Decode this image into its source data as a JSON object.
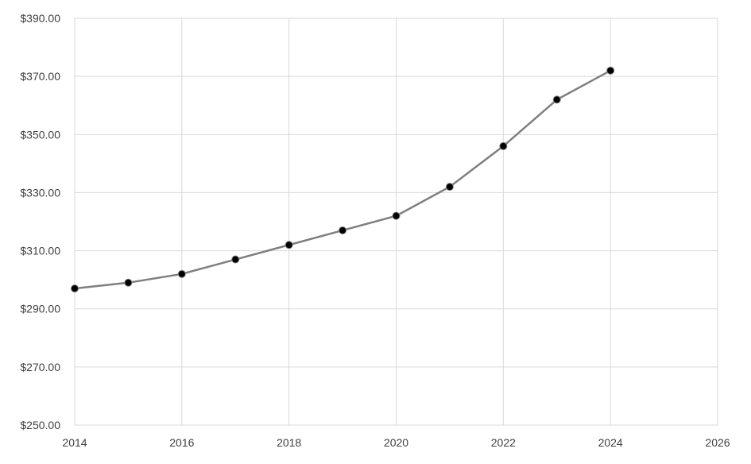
{
  "chart_data": {
    "type": "line",
    "title": "",
    "xlabel": "",
    "ylabel": "",
    "xlim": [
      2014,
      2026
    ],
    "ylim": [
      250,
      390
    ],
    "x_ticks": [
      2014,
      2016,
      2018,
      2020,
      2022,
      2024,
      2026
    ],
    "y_ticks": [
      250,
      270,
      290,
      310,
      330,
      350,
      370,
      390
    ],
    "y_tick_labels": [
      "$250.00",
      "$270.00",
      "$290.00",
      "$310.00",
      "$330.00",
      "$350.00",
      "$370.00",
      "$390.00"
    ],
    "grid": true,
    "legend": "none",
    "series": [
      {
        "color": "#7f7f7f",
        "marker_color": "#000000",
        "x": [
          2014,
          2015,
          2016,
          2017,
          2018,
          2019,
          2020,
          2021,
          2022,
          2023,
          2024
        ],
        "y": [
          297,
          299,
          302,
          307,
          312,
          317,
          322,
          332,
          346,
          362,
          372
        ]
      }
    ]
  }
}
